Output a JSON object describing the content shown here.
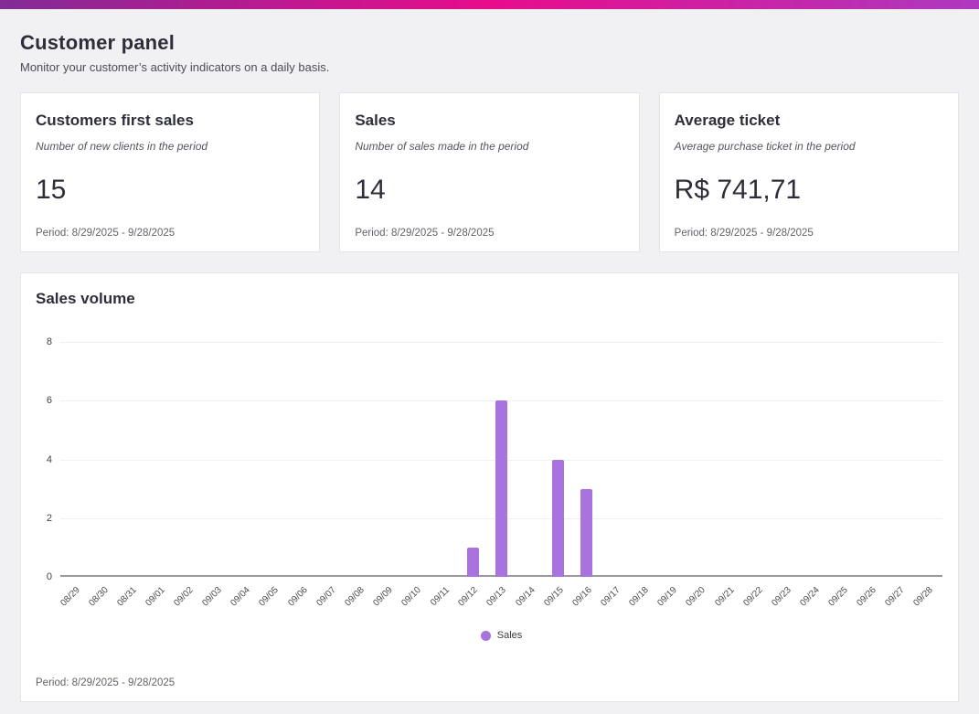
{
  "page": {
    "title": "Customer panel",
    "subtitle": "Monitor your customer’s activity indicators on a daily basis."
  },
  "colors": {
    "topbar_gradient_left": "#822b96",
    "topbar_gradient_mid": "#e80c8b",
    "topbar_gradient_right": "#ad39bf",
    "bar": "#a873df"
  },
  "stats": [
    {
      "title": "Customers first sales",
      "description": "Number of new clients in the period",
      "value": "15",
      "period": "Period: 8/29/2025 - 9/28/2025"
    },
    {
      "title": "Sales",
      "description": "Number of sales made in the period",
      "value": "14",
      "period": "Period: 8/29/2025 - 9/28/2025"
    },
    {
      "title": "Average ticket",
      "description": "Average purchase ticket in the period",
      "value": "R$ 741,71",
      "period": "Period: 8/29/2025 - 9/28/2025"
    }
  ],
  "chart_card": {
    "title": "Sales volume",
    "period": "Period: 8/29/2025 - 9/28/2025"
  },
  "chart_data": {
    "type": "bar",
    "title": "Sales volume",
    "categories": [
      "08/29",
      "08/30",
      "08/31",
      "09/01",
      "09/02",
      "09/03",
      "09/04",
      "09/05",
      "09/06",
      "09/07",
      "09/08",
      "09/09",
      "09/10",
      "09/11",
      "09/12",
      "09/13",
      "09/14",
      "09/15",
      "09/16",
      "09/17",
      "09/18",
      "09/19",
      "09/20",
      "09/21",
      "09/22",
      "09/23",
      "09/24",
      "09/25",
      "09/26",
      "09/27",
      "09/28"
    ],
    "series": [
      {
        "name": "Sales",
        "color": "#a873df",
        "values": [
          0,
          0,
          0,
          0,
          0,
          0,
          0,
          0,
          0,
          0,
          0,
          0,
          0,
          0,
          1,
          6,
          0,
          4,
          3,
          0,
          0,
          0,
          0,
          0,
          0,
          0,
          0,
          0,
          0,
          0,
          0
        ]
      }
    ],
    "xlabel": "",
    "ylabel": "",
    "ylim": [
      0,
      8
    ],
    "yticks": [
      0,
      2,
      4,
      6,
      8
    ],
    "grid": true,
    "legend_position": "bottom"
  }
}
